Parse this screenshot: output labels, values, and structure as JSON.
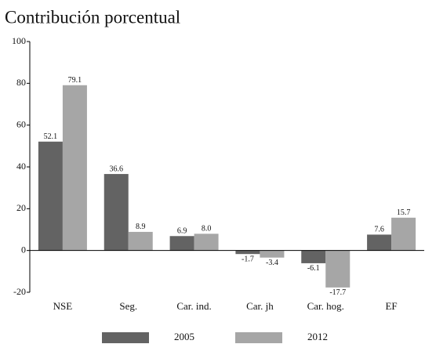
{
  "chart_data": {
    "type": "bar",
    "title": "Contribución porcentual",
    "categories": [
      "NSE",
      "Seg.",
      "Car. ind.",
      "Car. jh",
      "Car. hog.",
      "EF"
    ],
    "series": [
      {
        "name": "2005",
        "color": "#636363",
        "values": [
          52.1,
          36.6,
          6.9,
          -1.7,
          -6.1,
          7.6
        ],
        "value_labels": [
          "52.1",
          "36.6",
          "6.9",
          "-1.7",
          "-6.1",
          "7.6"
        ]
      },
      {
        "name": "2012",
        "color": "#a6a6a6",
        "values": [
          79.1,
          8.9,
          8.0,
          -3.4,
          -17.7,
          15.7
        ],
        "value_labels": [
          "79.1",
          "8.9",
          "8.0",
          "-3.4",
          "-17.7",
          "15.7"
        ]
      }
    ],
    "ylim": [
      -20,
      100
    ],
    "yticks": [
      -20,
      0,
      20,
      40,
      60,
      80,
      100
    ]
  }
}
